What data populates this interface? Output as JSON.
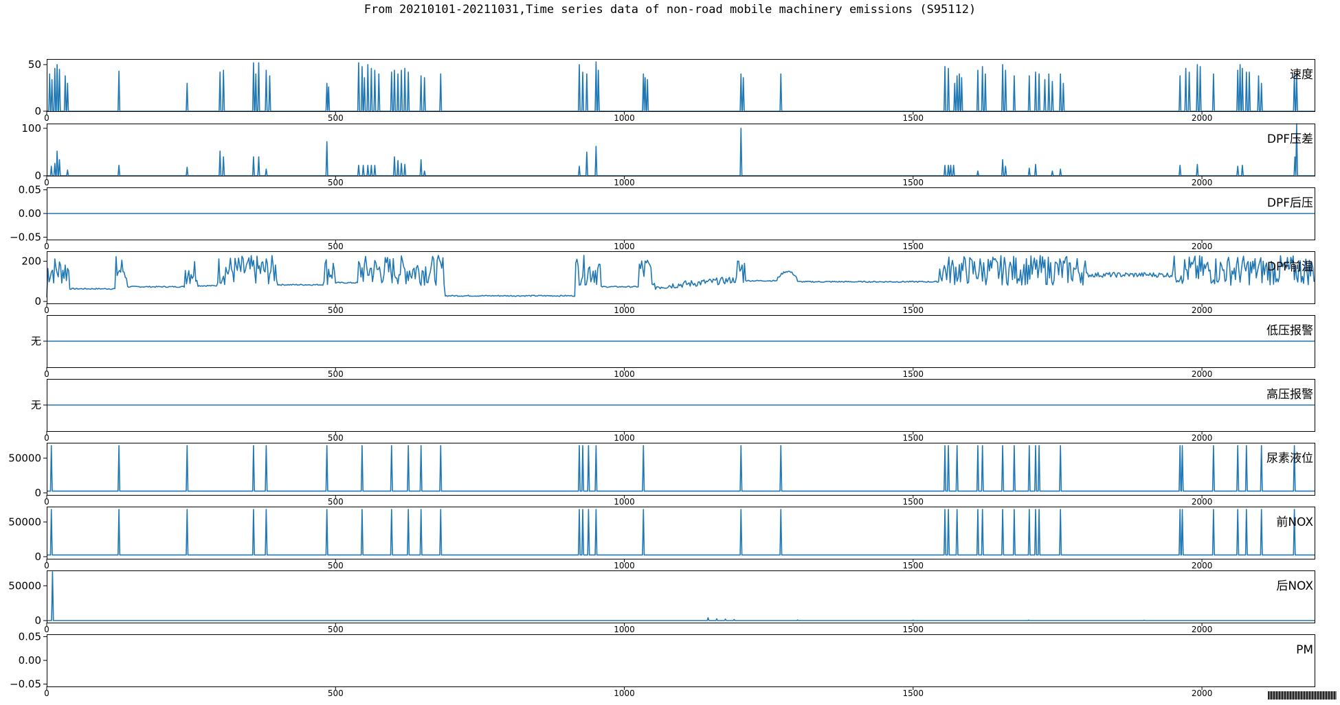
{
  "title": "From 20210101-20211031,Time series data of non-road mobile machinery emissions (S95112)",
  "chart_data": {
    "type": "line",
    "x_range": [
      0,
      2195
    ],
    "x_ticks": [
      0,
      500,
      1000,
      1500,
      2000
    ],
    "panels": [
      {
        "label": "速度",
        "ylim": [
          0,
          56
        ],
        "yticks": [
          0,
          50
        ],
        "ytick_labels": [
          "0",
          "50"
        ],
        "baseline": 0,
        "spikes": [
          [
            5,
            40
          ],
          [
            9,
            34
          ],
          [
            14,
            46
          ],
          [
            18,
            50
          ],
          [
            22,
            45
          ],
          [
            32,
            38
          ],
          [
            36,
            30
          ],
          [
            125,
            43
          ],
          [
            243,
            30
          ],
          [
            300,
            42
          ],
          [
            306,
            44
          ],
          [
            358,
            52
          ],
          [
            362,
            40
          ],
          [
            367,
            52
          ],
          [
            380,
            44
          ],
          [
            386,
            38
          ],
          [
            485,
            30
          ],
          [
            488,
            26
          ],
          [
            540,
            52
          ],
          [
            546,
            48
          ],
          [
            550,
            36
          ],
          [
            556,
            50
          ],
          [
            562,
            46
          ],
          [
            568,
            44
          ],
          [
            575,
            40
          ],
          [
            597,
            42
          ],
          [
            602,
            44
          ],
          [
            608,
            40
          ],
          [
            614,
            44
          ],
          [
            620,
            46
          ],
          [
            626,
            42
          ],
          [
            648,
            38
          ],
          [
            654,
            36
          ],
          [
            682,
            40
          ],
          [
            922,
            50
          ],
          [
            928,
            42
          ],
          [
            935,
            40
          ],
          [
            951,
            53
          ],
          [
            955,
            44
          ],
          [
            1033,
            40
          ],
          [
            1036,
            36
          ],
          [
            1040,
            34
          ],
          [
            1202,
            40
          ],
          [
            1206,
            36
          ],
          [
            1271,
            40
          ],
          [
            1555,
            48
          ],
          [
            1561,
            46
          ],
          [
            1572,
            30
          ],
          [
            1576,
            38
          ],
          [
            1580,
            40
          ],
          [
            1584,
            36
          ],
          [
            1612,
            44
          ],
          [
            1620,
            48
          ],
          [
            1625,
            40
          ],
          [
            1655,
            50
          ],
          [
            1660,
            44
          ],
          [
            1675,
            38
          ],
          [
            1701,
            38
          ],
          [
            1712,
            42
          ],
          [
            1718,
            40
          ],
          [
            1728,
            34
          ],
          [
            1735,
            40
          ],
          [
            1741,
            32
          ],
          [
            1755,
            40
          ],
          [
            1760,
            30
          ],
          [
            1962,
            38
          ],
          [
            1972,
            46
          ],
          [
            1978,
            42
          ],
          [
            1992,
            50
          ],
          [
            1997,
            48
          ],
          [
            2020,
            40
          ],
          [
            2062,
            44
          ],
          [
            2066,
            50
          ],
          [
            2070,
            46
          ],
          [
            2077,
            42
          ],
          [
            2082,
            42
          ],
          [
            2098,
            38
          ],
          [
            2103,
            30
          ],
          [
            2160,
            40
          ],
          [
            2164,
            38
          ]
        ]
      },
      {
        "label": "DPF压差",
        "ylim": [
          0,
          110
        ],
        "yticks": [
          0,
          100
        ],
        "ytick_labels": [
          "0",
          "100"
        ],
        "baseline": 0,
        "spikes": [
          [
            8,
            20
          ],
          [
            14,
            26
          ],
          [
            18,
            52
          ],
          [
            22,
            34
          ],
          [
            36,
            12
          ],
          [
            125,
            22
          ],
          [
            243,
            18
          ],
          [
            300,
            52
          ],
          [
            306,
            40
          ],
          [
            358,
            40
          ],
          [
            367,
            40
          ],
          [
            380,
            14
          ],
          [
            485,
            72
          ],
          [
            540,
            22
          ],
          [
            548,
            22
          ],
          [
            556,
            22
          ],
          [
            562,
            22
          ],
          [
            568,
            22
          ],
          [
            602,
            40
          ],
          [
            608,
            32
          ],
          [
            614,
            26
          ],
          [
            620,
            24
          ],
          [
            648,
            34
          ],
          [
            654,
            10
          ],
          [
            922,
            20
          ],
          [
            935,
            50
          ],
          [
            951,
            62
          ],
          [
            1202,
            100
          ],
          [
            1555,
            22
          ],
          [
            1561,
            22
          ],
          [
            1565,
            22
          ],
          [
            1570,
            22
          ],
          [
            1612,
            10
          ],
          [
            1655,
            34
          ],
          [
            1660,
            20
          ],
          [
            1701,
            16
          ],
          [
            1712,
            24
          ],
          [
            1741,
            10
          ],
          [
            1755,
            14
          ],
          [
            1962,
            22
          ],
          [
            1992,
            24
          ],
          [
            2062,
            20
          ],
          [
            2070,
            22
          ],
          [
            2161,
            40
          ],
          [
            2164,
            110
          ]
        ]
      },
      {
        "label": "DPF后压",
        "ylim": [
          -0.055,
          0.055
        ],
        "yticks": [
          -0.05,
          0,
          0.05
        ],
        "ytick_labels": [
          "−0.05",
          "0.00",
          "0.05"
        ],
        "constant": 0
      },
      {
        "label": "DPF前温",
        "ylim": [
          -10,
          250
        ],
        "yticks": [
          0,
          200
        ],
        "ytick_labels": [
          "0",
          "200"
        ]
      },
      {
        "label": "低压报警",
        "ylim": [
          -1,
          1
        ],
        "yticks": [
          0
        ],
        "ytick_labels": [
          "无"
        ],
        "constant": 0
      },
      {
        "label": "高压报警",
        "ylim": [
          -1,
          1
        ],
        "yticks": [
          0
        ],
        "ytick_labels": [
          "无"
        ],
        "constant": 0
      },
      {
        "label": "尿素液位",
        "ylim": [
          -3000,
          72000
        ],
        "yticks": [
          0,
          50000
        ],
        "ytick_labels": [
          "0",
          "50000"
        ],
        "baseline": 2500,
        "spikes": [
          [
            8,
            68000
          ],
          [
            125,
            68000
          ],
          [
            243,
            68000
          ],
          [
            358,
            68000
          ],
          [
            380,
            68000
          ],
          [
            485,
            68000
          ],
          [
            546,
            68000
          ],
          [
            597,
            68000
          ],
          [
            626,
            68000
          ],
          [
            648,
            68000
          ],
          [
            682,
            68000
          ],
          [
            922,
            68000
          ],
          [
            928,
            68000
          ],
          [
            938,
            68000
          ],
          [
            951,
            68000
          ],
          [
            1033,
            68000
          ],
          [
            1202,
            68000
          ],
          [
            1271,
            68000
          ],
          [
            1555,
            68000
          ],
          [
            1561,
            68000
          ],
          [
            1576,
            68000
          ],
          [
            1612,
            68000
          ],
          [
            1620,
            68000
          ],
          [
            1655,
            68000
          ],
          [
            1675,
            68000
          ],
          [
            1701,
            68000
          ],
          [
            1712,
            68000
          ],
          [
            1718,
            68000
          ],
          [
            1755,
            68000
          ],
          [
            1962,
            68000
          ],
          [
            1966,
            68000
          ],
          [
            2020,
            68000
          ],
          [
            2062,
            68000
          ],
          [
            2077,
            68000
          ],
          [
            2103,
            68000
          ],
          [
            2160,
            68000
          ]
        ]
      },
      {
        "label": "前NOX",
        "ylim": [
          -3000,
          72000
        ],
        "yticks": [
          0,
          50000
        ],
        "ytick_labels": [
          "0",
          "50000"
        ],
        "baseline": 2500,
        "spikes": [
          [
            8,
            68000
          ],
          [
            125,
            68000
          ],
          [
            243,
            68000
          ],
          [
            358,
            68000
          ],
          [
            380,
            68000
          ],
          [
            485,
            68000
          ],
          [
            546,
            68000
          ],
          [
            597,
            68000
          ],
          [
            626,
            68000
          ],
          [
            648,
            68000
          ],
          [
            682,
            68000
          ],
          [
            922,
            68000
          ],
          [
            928,
            68000
          ],
          [
            938,
            68000
          ],
          [
            951,
            68000
          ],
          [
            1033,
            68000
          ],
          [
            1202,
            68000
          ],
          [
            1271,
            68000
          ],
          [
            1555,
            68000
          ],
          [
            1561,
            68000
          ],
          [
            1576,
            68000
          ],
          [
            1612,
            68000
          ],
          [
            1620,
            68000
          ],
          [
            1655,
            68000
          ],
          [
            1675,
            68000
          ],
          [
            1701,
            68000
          ],
          [
            1712,
            68000
          ],
          [
            1718,
            68000
          ],
          [
            1755,
            68000
          ],
          [
            1962,
            68000
          ],
          [
            1966,
            68000
          ],
          [
            2020,
            68000
          ],
          [
            2062,
            68000
          ],
          [
            2077,
            68000
          ],
          [
            2103,
            68000
          ],
          [
            2160,
            68000
          ]
        ]
      },
      {
        "label": "后NOX",
        "ylim": [
          -3000,
          72000
        ],
        "yticks": [
          0,
          50000
        ],
        "ytick_labels": [
          "0",
          "50000"
        ],
        "baseline": 0,
        "spikes": [
          [
            10,
            70000
          ],
          [
            1145,
            4000
          ],
          [
            1160,
            2500
          ],
          [
            1175,
            2000
          ],
          [
            1190,
            1500
          ],
          [
            1300,
            800
          ],
          [
            1500,
            600
          ],
          [
            1700,
            600
          ],
          [
            1900,
            500
          ]
        ]
      },
      {
        "label": "PM",
        "ylim": [
          -0.055,
          0.055
        ],
        "yticks": [
          -0.05,
          0,
          0.05
        ],
        "ytick_labels": [
          "−0.05",
          "0.00",
          "0.05"
        ],
        "empty": true
      }
    ]
  }
}
